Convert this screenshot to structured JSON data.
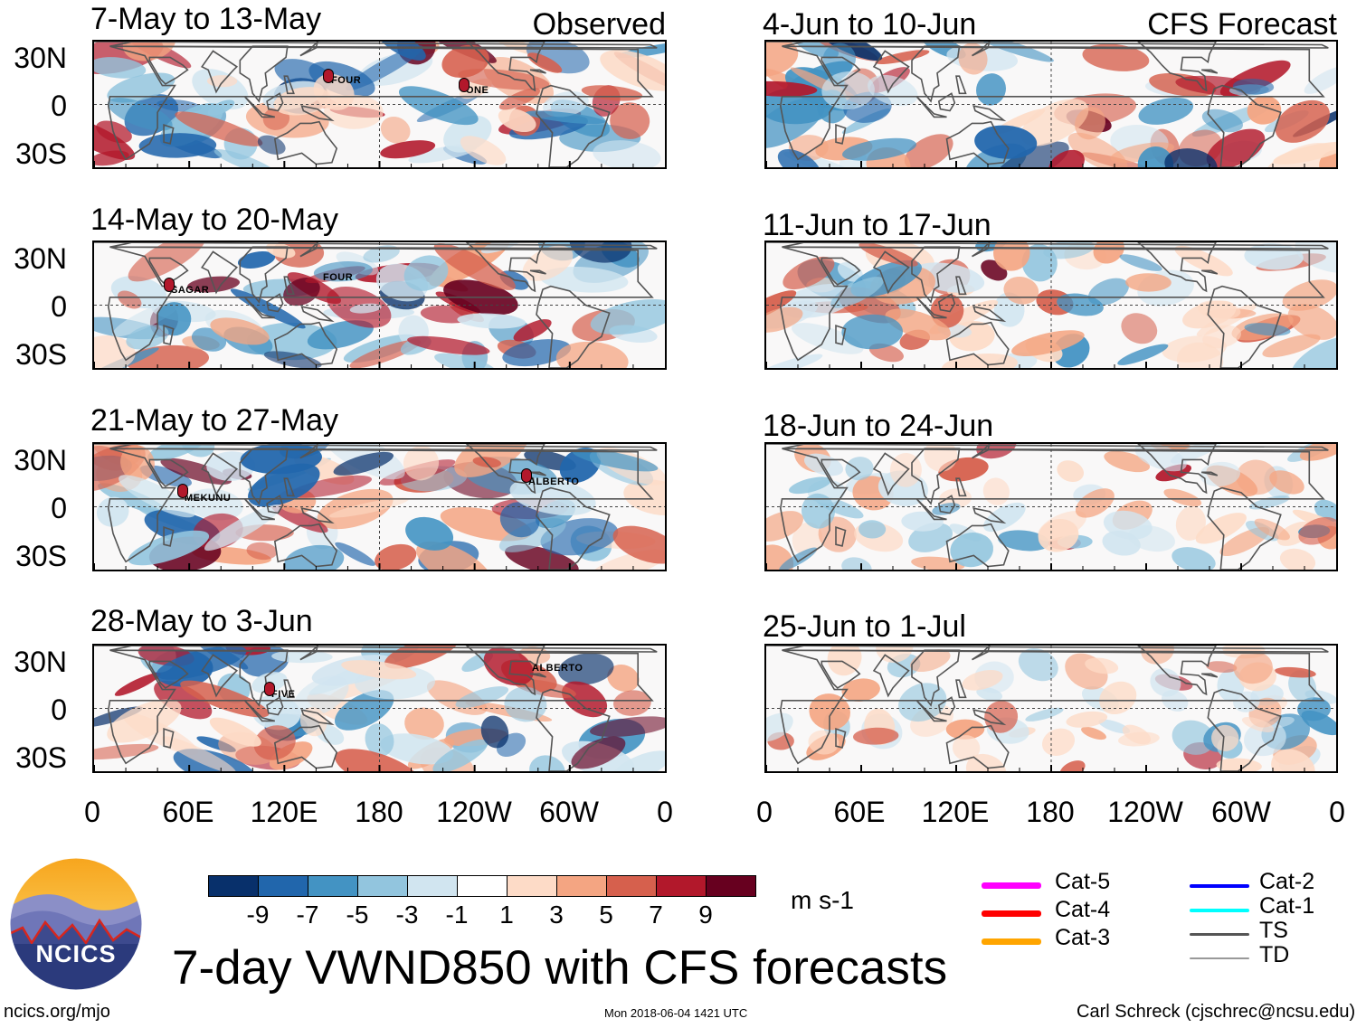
{
  "header": {
    "observed_label": "Observed",
    "forecast_label": "CFS Forecast"
  },
  "panels": {
    "observed": [
      {
        "title": "7-May to 13-May",
        "storms": [
          "FOUR",
          "ONE"
        ]
      },
      {
        "title": "14-May to 20-May",
        "storms": [
          "SAGAR",
          "FOUR"
        ]
      },
      {
        "title": "21-May to 27-May",
        "storms": [
          "MEKUNU",
          "ALBERTO"
        ]
      },
      {
        "title": "28-May to 3-Jun",
        "storms": [
          "FIVE",
          "ALBERTO"
        ]
      }
    ],
    "forecast": [
      {
        "title": "4-Jun to 10-Jun"
      },
      {
        "title": "11-Jun to 17-Jun"
      },
      {
        "title": "18-Jun to 24-Jun"
      },
      {
        "title": "25-Jun to 1-Jul"
      }
    ]
  },
  "axes": {
    "lat_labels": [
      "30N",
      "0",
      "30S"
    ],
    "lon_labels": [
      "0",
      "60E",
      "120E",
      "180",
      "120W",
      "60W",
      "0"
    ]
  },
  "colorbar": {
    "tick_labels": [
      "-9",
      "-7",
      "-5",
      "-3",
      "-1",
      "1",
      "3",
      "5",
      "7",
      "9"
    ],
    "colors": [
      "#08306b",
      "#2166ac",
      "#4393c3",
      "#92c5de",
      "#d1e5f0",
      "#ffffff",
      "#fddbc7",
      "#f4a582",
      "#d6604d",
      "#b2182b",
      "#67001f"
    ],
    "units": "m s-1"
  },
  "legend": {
    "items": [
      {
        "label": "Cat-5",
        "color": "#ff00ff"
      },
      {
        "label": "Cat-4",
        "color": "#ff0000"
      },
      {
        "label": "Cat-3",
        "color": "#ffa500"
      },
      {
        "label": "Cat-2",
        "color": "#0000ff"
      },
      {
        "label": "Cat-1",
        "color": "#00ffff"
      },
      {
        "label": "TS",
        "color": "#555555"
      },
      {
        "label": "TD",
        "color": "#999999"
      }
    ]
  },
  "logo": {
    "text": "NCICS"
  },
  "title": "7-day VWND850 with CFS forecasts",
  "footer": {
    "url": "ncics.org/mjo",
    "timestamp": "Mon 2018-06-04 1421 UTC",
    "author": "Carl Schreck (cjschrec@ncsu.edu)"
  }
}
